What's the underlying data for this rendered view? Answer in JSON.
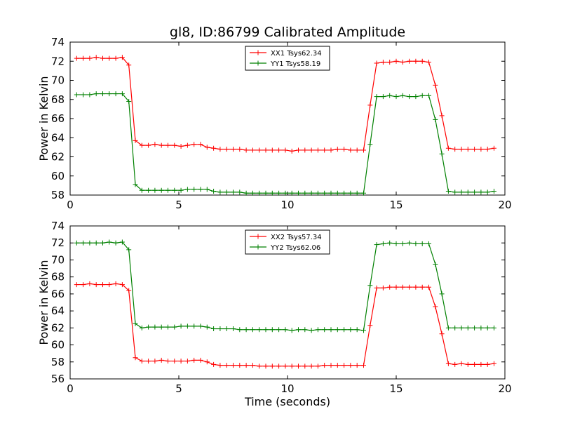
{
  "figure": {
    "title": "gl8, ID:86799 Calibrated Amplitude"
  },
  "colors": {
    "xx": "#ff0000",
    "yy": "#008000"
  },
  "chart_data": [
    {
      "type": "line",
      "title": "gl8, ID:86799 Calibrated Amplitude",
      "xlabel": "",
      "ylabel": "Power in Kelvin",
      "xlim": [
        0,
        20
      ],
      "ylim": [
        58,
        74
      ],
      "xticks": [
        "0",
        "5",
        "10",
        "15",
        "20"
      ],
      "yticks": [
        "58",
        "60",
        "62",
        "64",
        "66",
        "68",
        "70",
        "72",
        "74"
      ],
      "grid": false,
      "legend": "top-center",
      "x": [
        0.3,
        0.6,
        0.9,
        1.2,
        1.5,
        1.8,
        2.1,
        2.4,
        2.7,
        3.0,
        3.3,
        3.6,
        3.9,
        4.2,
        4.5,
        4.8,
        5.1,
        5.4,
        5.7,
        6.0,
        6.3,
        6.6,
        6.9,
        7.2,
        7.5,
        7.8,
        8.1,
        8.4,
        8.7,
        9.0,
        9.3,
        9.6,
        9.9,
        10.2,
        10.5,
        10.8,
        11.1,
        11.4,
        11.7,
        12.0,
        12.3,
        12.6,
        12.9,
        13.2,
        13.5,
        13.8,
        14.1,
        14.4,
        14.7,
        15.0,
        15.3,
        15.6,
        15.9,
        16.2,
        16.5,
        16.8,
        17.1,
        17.4,
        17.7,
        18.0,
        18.3,
        18.6,
        18.9,
        19.2,
        19.5
      ],
      "series": [
        {
          "name": "XX1 Tsys62.34",
          "color": "#ff0000",
          "values": [
            72.3,
            72.3,
            72.3,
            72.4,
            72.3,
            72.3,
            72.3,
            72.4,
            71.6,
            63.7,
            63.2,
            63.2,
            63.3,
            63.2,
            63.2,
            63.2,
            63.1,
            63.2,
            63.3,
            63.3,
            63.0,
            62.9,
            62.8,
            62.8,
            62.8,
            62.8,
            62.7,
            62.7,
            62.7,
            62.7,
            62.7,
            62.7,
            62.7,
            62.6,
            62.7,
            62.7,
            62.7,
            62.7,
            62.7,
            62.7,
            62.8,
            62.8,
            62.7,
            62.7,
            62.7,
            67.4,
            71.8,
            71.9,
            71.9,
            72.0,
            71.9,
            72.0,
            72.0,
            72.0,
            71.9,
            69.5,
            66.3,
            62.9,
            62.8,
            62.8,
            62.8,
            62.8,
            62.8,
            62.8,
            62.9
          ]
        },
        {
          "name": "YY1 Tsys58.19",
          "color": "#008000",
          "values": [
            68.5,
            68.5,
            68.5,
            68.6,
            68.6,
            68.6,
            68.6,
            68.6,
            67.8,
            59.1,
            58.5,
            58.5,
            58.5,
            58.5,
            58.5,
            58.5,
            58.5,
            58.6,
            58.6,
            58.6,
            58.6,
            58.4,
            58.3,
            58.3,
            58.3,
            58.3,
            58.2,
            58.2,
            58.2,
            58.2,
            58.2,
            58.2,
            58.2,
            58.2,
            58.2,
            58.2,
            58.2,
            58.2,
            58.2,
            58.2,
            58.2,
            58.2,
            58.2,
            58.2,
            58.2,
            63.3,
            68.3,
            68.3,
            68.4,
            68.3,
            68.4,
            68.3,
            68.3,
            68.4,
            68.4,
            65.9,
            62.3,
            58.4,
            58.3,
            58.3,
            58.3,
            58.3,
            58.3,
            58.3,
            58.4
          ]
        }
      ]
    },
    {
      "type": "line",
      "title": "",
      "xlabel": "Time (seconds)",
      "ylabel": "Power in Kelvin",
      "xlim": [
        0,
        20
      ],
      "ylim": [
        56,
        74
      ],
      "xticks": [
        "0",
        "5",
        "10",
        "15",
        "20"
      ],
      "yticks": [
        "56",
        "58",
        "60",
        "62",
        "64",
        "66",
        "68",
        "70",
        "72",
        "74"
      ],
      "grid": false,
      "legend": "top-center",
      "x": [
        0.3,
        0.6,
        0.9,
        1.2,
        1.5,
        1.8,
        2.1,
        2.4,
        2.7,
        3.0,
        3.3,
        3.6,
        3.9,
        4.2,
        4.5,
        4.8,
        5.1,
        5.4,
        5.7,
        6.0,
        6.3,
        6.6,
        6.9,
        7.2,
        7.5,
        7.8,
        8.1,
        8.4,
        8.7,
        9.0,
        9.3,
        9.6,
        9.9,
        10.2,
        10.5,
        10.8,
        11.1,
        11.4,
        11.7,
        12.0,
        12.3,
        12.6,
        12.9,
        13.2,
        13.5,
        13.8,
        14.1,
        14.4,
        14.7,
        15.0,
        15.3,
        15.6,
        15.9,
        16.2,
        16.5,
        16.8,
        17.1,
        17.4,
        17.7,
        18.0,
        18.3,
        18.6,
        18.9,
        19.2,
        19.5
      ],
      "series": [
        {
          "name": "XX2 Tsys57.34",
          "color": "#ff0000",
          "values": [
            67.1,
            67.1,
            67.2,
            67.1,
            67.1,
            67.1,
            67.2,
            67.1,
            66.4,
            58.5,
            58.1,
            58.1,
            58.1,
            58.2,
            58.1,
            58.1,
            58.1,
            58.1,
            58.2,
            58.2,
            58.0,
            57.7,
            57.6,
            57.6,
            57.6,
            57.6,
            57.6,
            57.6,
            57.5,
            57.5,
            57.5,
            57.5,
            57.5,
            57.5,
            57.5,
            57.5,
            57.5,
            57.5,
            57.6,
            57.6,
            57.6,
            57.6,
            57.6,
            57.6,
            57.6,
            62.3,
            66.7,
            66.7,
            66.8,
            66.8,
            66.8,
            66.8,
            66.8,
            66.8,
            66.8,
            64.5,
            61.3,
            57.8,
            57.7,
            57.8,
            57.7,
            57.7,
            57.7,
            57.7,
            57.8
          ]
        },
        {
          "name": "YY2 Tsys62.06",
          "color": "#008000",
          "values": [
            72.0,
            72.0,
            72.0,
            72.0,
            72.0,
            72.1,
            72.0,
            72.1,
            71.2,
            62.5,
            62.0,
            62.1,
            62.1,
            62.1,
            62.1,
            62.1,
            62.2,
            62.2,
            62.2,
            62.2,
            62.1,
            61.9,
            61.9,
            61.9,
            61.9,
            61.8,
            61.8,
            61.8,
            61.8,
            61.8,
            61.8,
            61.8,
            61.8,
            61.7,
            61.8,
            61.8,
            61.7,
            61.8,
            61.8,
            61.8,
            61.8,
            61.8,
            61.8,
            61.8,
            61.7,
            67.0,
            71.8,
            71.9,
            72.0,
            71.9,
            71.9,
            72.0,
            71.9,
            71.9,
            71.9,
            69.5,
            66.0,
            62.0,
            62.0,
            62.0,
            62.0,
            62.0,
            62.0,
            62.0,
            62.0
          ]
        }
      ]
    }
  ]
}
